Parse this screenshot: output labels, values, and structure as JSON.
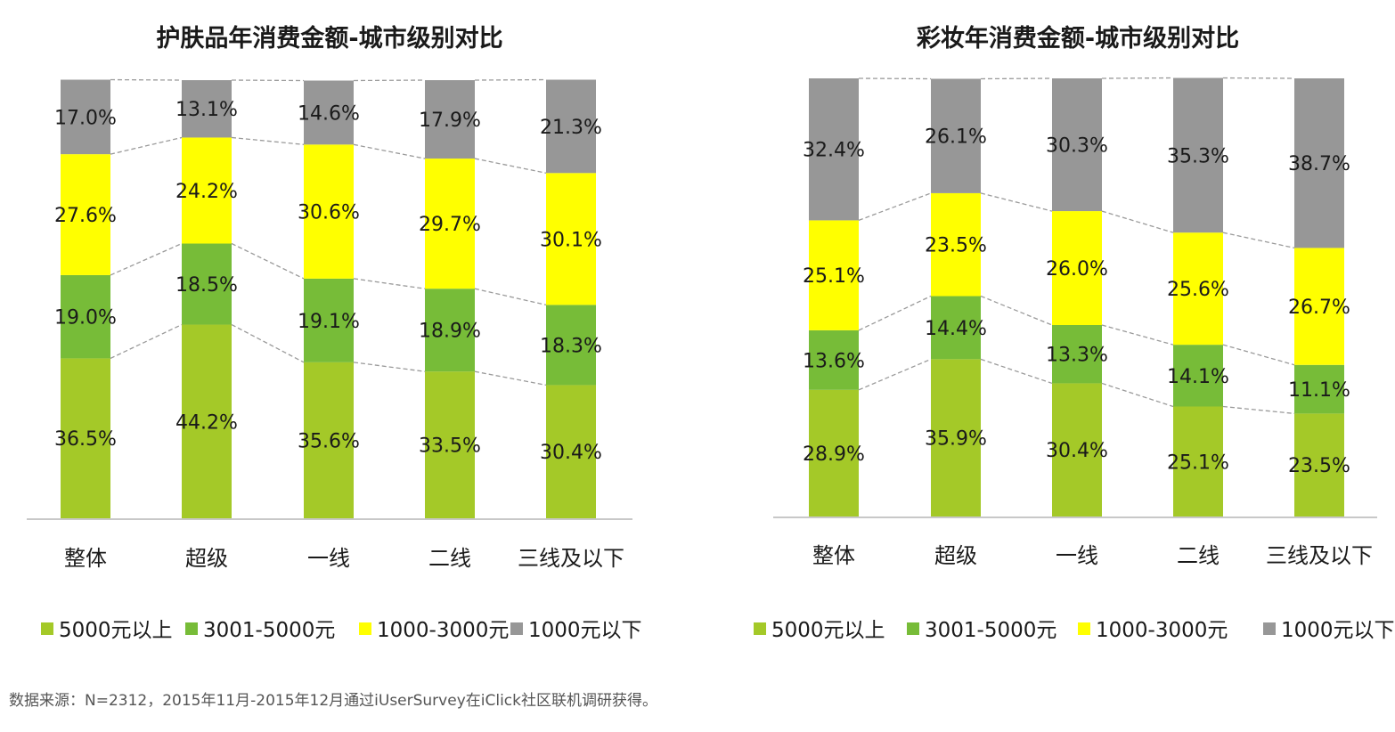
{
  "colors": {
    "5000元以上": "#a4c928",
    "3001-5000元": "#77bc38",
    "1000-3000元": "#ffff00",
    "1000元以下": "#979797",
    "connector": "#9a9a9a",
    "axis": "#c8c8c8",
    "text": "#1a1a1a"
  },
  "source": "数据来源：N=2312，2015年11月-2015年12月通过iUserSurvey在iClick社区联机调研获得。",
  "chart_data": [
    {
      "type": "bar",
      "stacked": true,
      "percent": true,
      "title": "护肤品年消费金额-城市级别对比",
      "categories": [
        "整体",
        "超级",
        "一线",
        "二线",
        "三线及以下"
      ],
      "series": [
        {
          "name": "5000元以上",
          "values": [
            36.5,
            44.2,
            35.6,
            33.5,
            30.4
          ]
        },
        {
          "name": "3001-5000元",
          "values": [
            19.0,
            18.5,
            19.1,
            18.9,
            18.3
          ]
        },
        {
          "name": "1000-3000元",
          "values": [
            27.6,
            24.2,
            30.6,
            29.7,
            30.1
          ]
        },
        {
          "name": "1000元以下",
          "values": [
            17.0,
            13.1,
            14.6,
            17.9,
            21.3
          ]
        }
      ],
      "legend_position": "bottom",
      "grid": false,
      "connector_lines": true
    },
    {
      "type": "bar",
      "stacked": true,
      "percent": true,
      "title": "彩妆年消费金额-城市级别对比",
      "categories": [
        "整体",
        "超级",
        "一线",
        "二线",
        "三线及以下"
      ],
      "series": [
        {
          "name": "5000元以上",
          "values": [
            28.9,
            35.9,
            30.4,
            25.1,
            23.5
          ]
        },
        {
          "name": "3001-5000元",
          "values": [
            13.6,
            14.4,
            13.3,
            14.1,
            11.1
          ]
        },
        {
          "name": "1000-3000元",
          "values": [
            25.1,
            23.5,
            26.0,
            25.6,
            26.7
          ]
        },
        {
          "name": "1000元以下",
          "values": [
            32.4,
            26.1,
            30.3,
            35.3,
            38.7
          ]
        }
      ],
      "legend_position": "bottom",
      "grid": false,
      "connector_lines": true
    }
  ]
}
